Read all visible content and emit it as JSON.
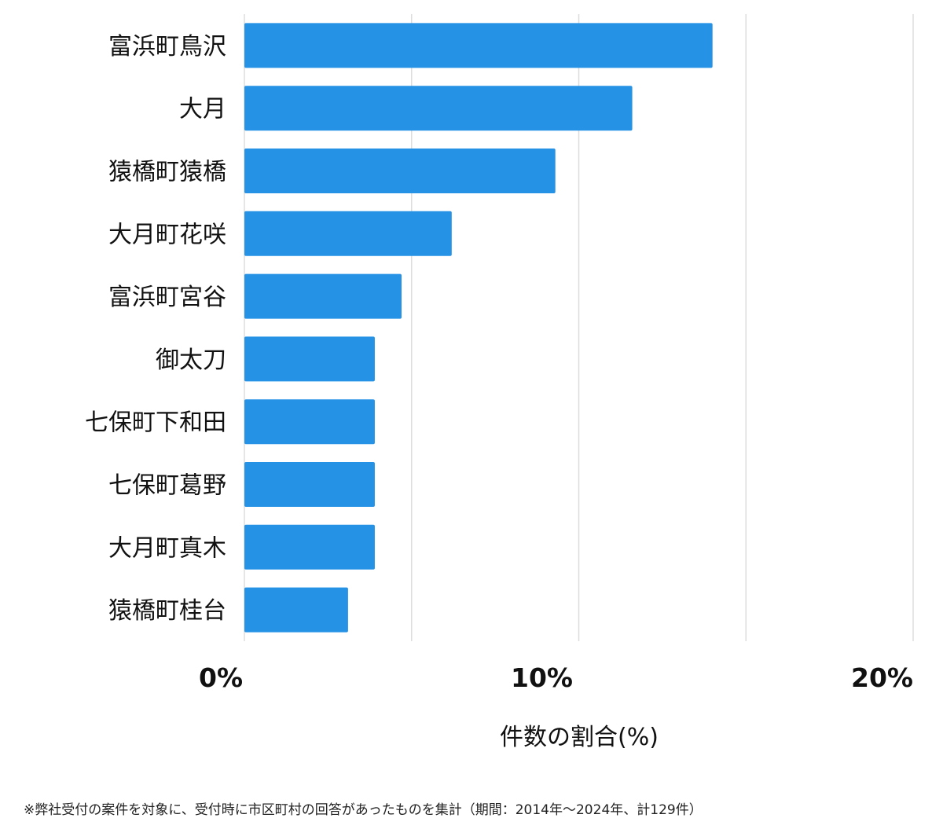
{
  "chart_data": {
    "type": "bar",
    "orientation": "horizontal",
    "categories": [
      "富浜町鳥沢",
      "大月",
      "猿橋町猿橋",
      "大月町花咲",
      "富浜町宮谷",
      "御太刀",
      "七保町下和田",
      "七保町葛野",
      "大月町真木",
      "猿橋町桂台"
    ],
    "values": [
      14.0,
      11.6,
      9.3,
      6.2,
      4.7,
      3.9,
      3.9,
      3.9,
      3.9,
      3.1
    ],
    "xlim": [
      0,
      20
    ],
    "ticks": [
      0,
      10,
      20
    ],
    "tick_labels": [
      "0%",
      "10%",
      "20%"
    ],
    "gridlines": [
      0,
      5,
      10,
      15,
      20
    ],
    "grid": true,
    "xlabel": "件数の割合(%)",
    "bar_color": "#2592e6"
  },
  "footnote": "※弊社受付の案件を対象に、受付時に市区町村の回答があったものを集計（期間：2014年～2024年、計129件）"
}
